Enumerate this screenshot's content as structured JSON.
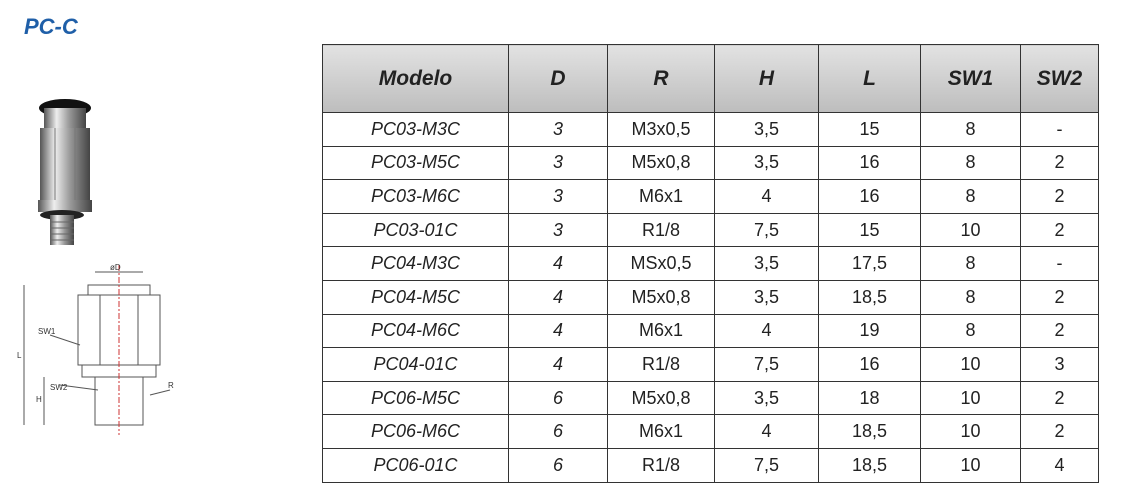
{
  "header": {
    "title": "PC-C"
  },
  "drawing": {
    "labels": {
      "diameter": "øD",
      "sw1": "SW1",
      "sw2": "SW2",
      "r": "R",
      "l": "L",
      "h": "H"
    }
  },
  "table": {
    "header": [
      "Modelo",
      "D",
      "R",
      "H",
      "L",
      "SW1",
      "SW2"
    ],
    "rows": [
      [
        "PC03-M3C",
        "3",
        "M3x0,5",
        "3,5",
        "15",
        "8",
        "-"
      ],
      [
        "PC03-M5C",
        "3",
        "M5x0,8",
        "3,5",
        "16",
        "8",
        "2"
      ],
      [
        "PC03-M6C",
        "3",
        "M6x1",
        "4",
        "16",
        "8",
        "2"
      ],
      [
        "PC03-01C",
        "3",
        "R1/8",
        "7,5",
        "15",
        "10",
        "2"
      ],
      [
        "PC04-M3C",
        "4",
        "MSx0,5",
        "3,5",
        "17,5",
        "8",
        "-"
      ],
      [
        "PC04-M5C",
        "4",
        "M5x0,8",
        "3,5",
        "18,5",
        "8",
        "2"
      ],
      [
        "PC04-M6C",
        "4",
        "M6x1",
        "4",
        "19",
        "8",
        "2"
      ],
      [
        "PC04-01C",
        "4",
        "R1/8",
        "7,5",
        "16",
        "10",
        "3"
      ],
      [
        "PC06-M5C",
        "6",
        "M5x0,8",
        "3,5",
        "18",
        "10",
        "2"
      ],
      [
        "PC06-M6C",
        "6",
        "M6x1",
        "4",
        "18,5",
        "10",
        "2"
      ],
      [
        "PC06-01C",
        "6",
        "R1/8",
        "7,5",
        "18,5",
        "10",
        "4"
      ]
    ]
  }
}
